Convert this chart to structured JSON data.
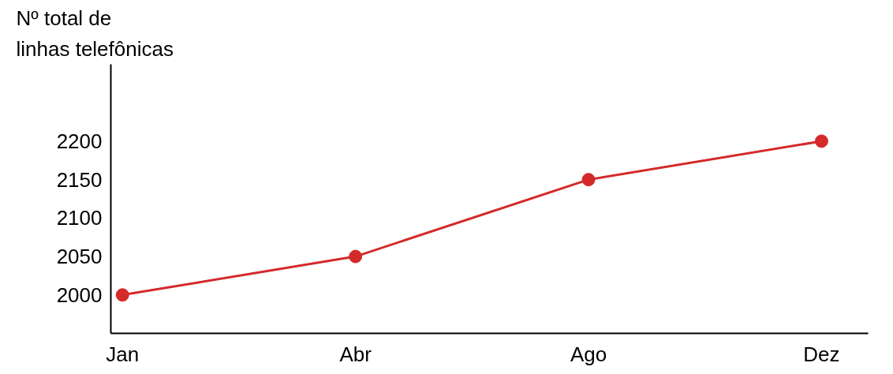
{
  "chart_data": {
    "type": "line",
    "ylabel": "Nº total de\nlinhas telefônicas",
    "categories": [
      "Jan",
      "Abr",
      "Ago",
      "Dez"
    ],
    "series": [
      {
        "color": "#d42a2a",
        "values": [
          2000,
          2050,
          2150,
          2200
        ]
      }
    ],
    "ylim": [
      1950,
      2300
    ],
    "yticks": [
      2000,
      2050,
      2100,
      2150,
      2200
    ],
    "grid": false,
    "marker": "circle",
    "line_style": "solid"
  }
}
